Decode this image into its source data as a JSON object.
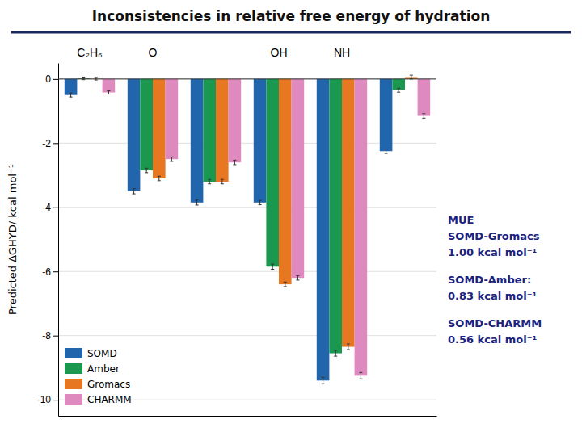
{
  "chart_data": {
    "type": "bar",
    "title": "Inconsistencies in relative free energy of hydration",
    "y_label": "Predicted ΔGHYD/ kcal mol⁻¹",
    "categories": [
      "C₂H₆",
      "O",
      null,
      "OH",
      "NH",
      null
    ],
    "series": [
      {
        "name": "SOMD",
        "color": "#2166ac",
        "values": [
          -0.5,
          -3.5,
          -3.85,
          -3.85,
          -9.4,
          -2.25
        ],
        "errors": [
          0.06,
          0.08,
          0.08,
          0.07,
          0.1,
          0.07
        ]
      },
      {
        "name": "Amber",
        "color": "#1a9850",
        "values": [
          0.02,
          -2.85,
          -3.2,
          -5.85,
          -8.55,
          -0.35
        ],
        "errors": [
          0.04,
          0.07,
          0.07,
          0.08,
          0.09,
          0.06
        ]
      },
      {
        "name": "Gromacs",
        "color": "#e87722",
        "values": [
          0.01,
          -3.1,
          -3.2,
          -6.4,
          -8.35,
          0.06
        ],
        "errors": [
          0.04,
          0.07,
          0.07,
          0.07,
          0.09,
          0.06
        ]
      },
      {
        "name": "CHARMM",
        "color": "#de8abf",
        "values": [
          -0.42,
          -2.5,
          -2.6,
          -6.2,
          -9.25,
          -1.15
        ],
        "errors": [
          0.05,
          0.07,
          0.07,
          0.07,
          0.1,
          0.07
        ]
      }
    ],
    "ylim": [
      -10.5,
      0.5
    ],
    "yticks": [
      0,
      -2,
      -4,
      -6,
      -8,
      -10
    ],
    "grid": true,
    "legend": "lower left",
    "annotations": [
      {
        "text": "MUE",
        "color": "#1a237e"
      },
      {
        "text": "SOMD-Gromacs",
        "color": "#1a237e"
      },
      {
        "text": "1.00 kcal mol⁻¹",
        "color": "#1a237e"
      },
      {
        "text": "SOMD-Amber:",
        "color": "#1a237e"
      },
      {
        "text": "0.83 kcal mol⁻¹",
        "color": "#1a237e"
      },
      {
        "text": "SOMD-CHARMM",
        "color": "#1a237e"
      },
      {
        "text": "0.56 kcal mol⁻¹",
        "color": "#1a237e"
      }
    ]
  }
}
